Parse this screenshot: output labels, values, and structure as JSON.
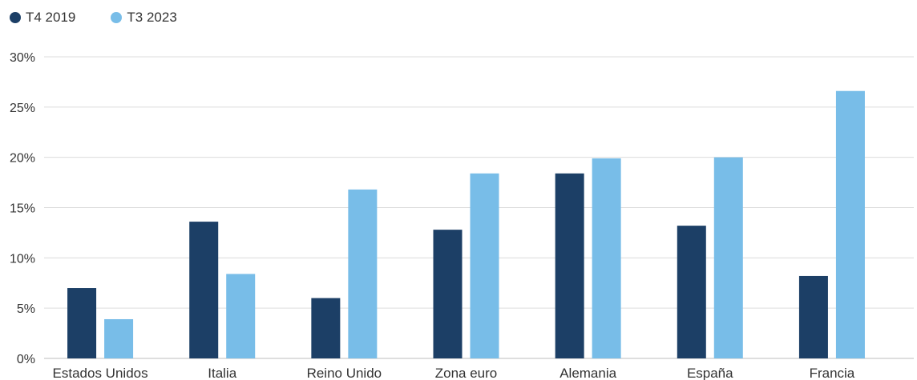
{
  "chart_data": {
    "type": "bar",
    "categories": [
      "Estados Unidos",
      "Italia",
      "Reino Unido",
      "Zona euro",
      "Alemania",
      "España",
      "Francia"
    ],
    "series": [
      {
        "name": "T4 2019",
        "color": "#1c3f66",
        "values": [
          7.0,
          13.6,
          6.0,
          12.8,
          18.4,
          13.2,
          8.2
        ]
      },
      {
        "name": "T3 2023",
        "color": "#78bde8",
        "values": [
          3.9,
          8.4,
          16.8,
          18.4,
          19.9,
          20.0,
          26.6
        ]
      }
    ],
    "title": "",
    "xlabel": "",
    "ylabel": "",
    "ylim": [
      0,
      30
    ],
    "yticks": [
      0,
      5,
      10,
      15,
      20,
      25,
      30
    ],
    "ytick_labels": [
      "0%",
      "5%",
      "10%",
      "15%",
      "20%",
      "25%",
      "30%"
    ],
    "grid": true,
    "legend_position": "top-left"
  }
}
